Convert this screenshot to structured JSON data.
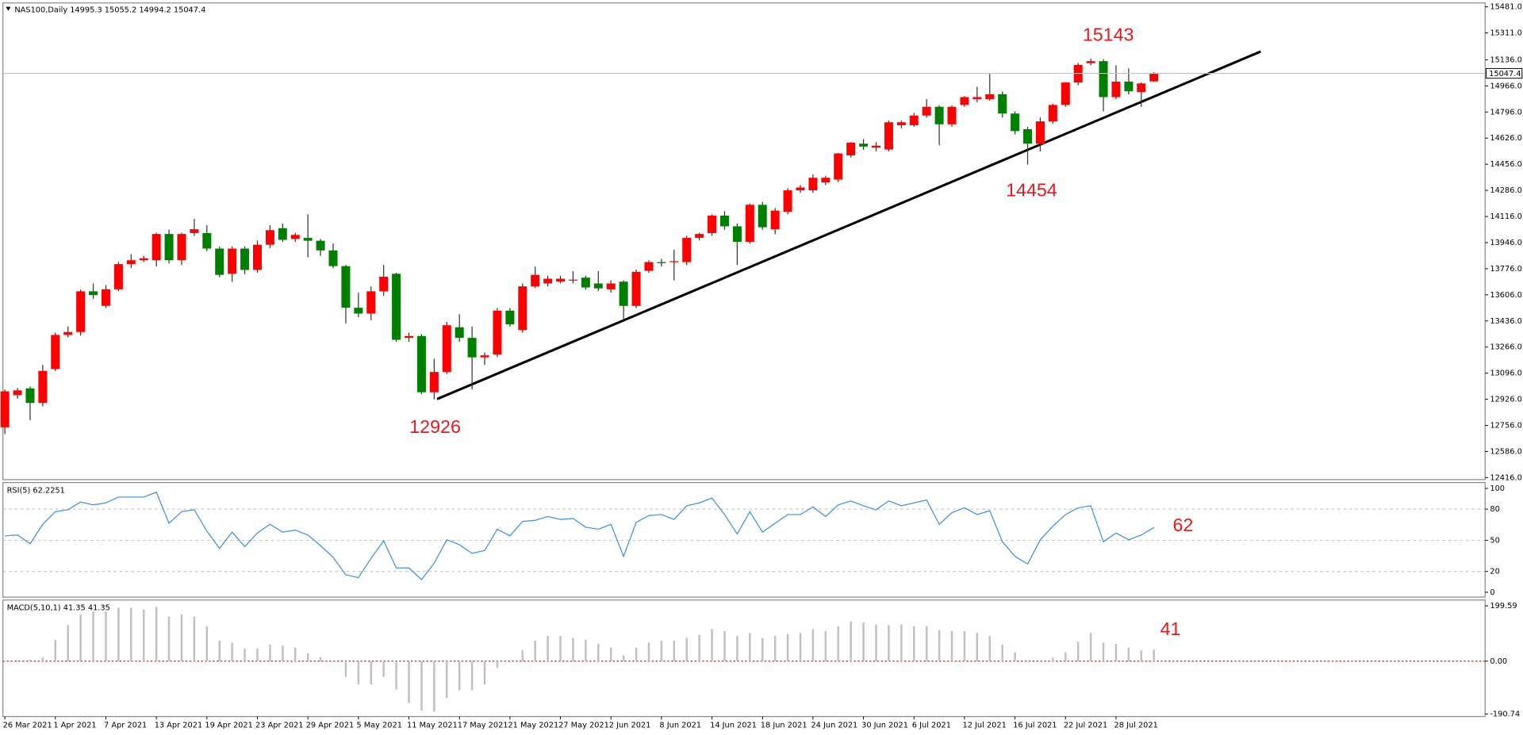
{
  "chart_data": [
    {
      "type": "candlestick",
      "title": "NAS100,Daily  14995.3 15055.2 14994.2 15047.4",
      "categories": [
        "26 Mar 2021",
        null,
        null,
        null,
        "1 Apr 2021",
        null,
        null,
        null,
        "7 Apr 2021",
        null,
        null,
        null,
        "13 Apr 2021",
        null,
        null,
        null,
        "19 Apr 2021",
        null,
        null,
        null,
        "23 Apr 2021",
        null,
        null,
        null,
        "29 Apr 2021",
        null,
        null,
        null,
        "5 May 2021",
        null,
        null,
        null,
        "11 May 2021",
        null,
        null,
        null,
        "17 May 2021",
        null,
        null,
        null,
        "21 May 2021",
        null,
        null,
        null,
        "27 May 2021",
        null,
        null,
        null,
        "2 Jun 2021",
        null,
        null,
        null,
        "8 Jun 2021",
        null,
        null,
        null,
        "14 Jun 2021",
        null,
        null,
        null,
        "18 Jun 2021",
        null,
        null,
        null,
        "24 Jun 2021",
        null,
        null,
        null,
        "30 Jun 2021",
        null,
        null,
        null,
        "6 Jul 2021",
        null,
        null,
        null,
        "12 Jul 2021",
        null,
        null,
        null,
        "16 Jul 2021",
        null,
        null,
        null,
        "22 Jul 2021",
        null,
        null,
        null,
        "28 Jul 2021",
        null,
        null,
        null
      ],
      "open": [
        12744,
        12953,
        12997,
        12902,
        13123,
        13345,
        13364,
        13629,
        13534,
        13642,
        13806,
        13831,
        13831,
        14002,
        13831,
        14008,
        14008,
        13907,
        13743,
        13907,
        13768,
        13932,
        14040,
        13970,
        13977,
        13958,
        13895,
        13793,
        13522,
        13484,
        13629,
        13743,
        13326,
        13338,
        12972,
        13104,
        13395,
        13326,
        13199,
        13218,
        13503,
        13376,
        13661,
        13680,
        13692,
        13699,
        13718,
        13680,
        13642,
        13692,
        13534,
        13762,
        13819,
        13819,
        13819,
        13977,
        14008,
        14122,
        14052,
        13951,
        14192,
        14033,
        14147,
        14286,
        14286,
        14337,
        14356,
        14514,
        14590,
        14564,
        14552,
        14710,
        14710,
        14773,
        14830,
        14716,
        14842,
        14880,
        14880,
        14912,
        14786,
        14684,
        14590,
        14735,
        14842,
        14988,
        15114,
        15127,
        14893,
        14994,
        14925,
        14995.3
      ],
      "high": [
        12990,
        13000,
        13010,
        13150,
        13360,
        13400,
        13640,
        13680,
        13670,
        13820,
        13870,
        13860,
        14010,
        14030,
        14010,
        14100,
        14060,
        13920,
        13920,
        13920,
        13960,
        14060,
        14070,
        14010,
        14130,
        13970,
        13940,
        13800,
        13620,
        13660,
        13800,
        13750,
        13360,
        13350,
        13190,
        13430,
        13480,
        13400,
        13230,
        13520,
        13520,
        13680,
        13790,
        13730,
        13730,
        13760,
        13730,
        13760,
        13700,
        13700,
        13770,
        13830,
        13840,
        13900,
        13990,
        14010,
        14130,
        14150,
        14070,
        14200,
        14210,
        14170,
        14300,
        14320,
        14390,
        14380,
        14530,
        14600,
        14620,
        14600,
        14740,
        14740,
        14790,
        14880,
        14840,
        14840,
        14900,
        14960,
        15050,
        14930,
        14800,
        14700,
        14760,
        14850,
        14990,
        15115,
        15143,
        15140,
        15100,
        15080,
        14990,
        15055.2
      ],
      "low": [
        12700,
        12930,
        12790,
        12880,
        13110,
        13330,
        13340,
        13580,
        13520,
        13630,
        13780,
        13820,
        13790,
        13810,
        13800,
        13990,
        13890,
        13720,
        13690,
        13740,
        13750,
        13910,
        13950,
        13950,
        13850,
        13860,
        13780,
        13420,
        13460,
        13440,
        13600,
        13300,
        13300,
        12960,
        12926,
        13090,
        13300,
        12990,
        13150,
        13200,
        13400,
        13360,
        13650,
        13660,
        13680,
        13680,
        13640,
        13630,
        13620,
        13440,
        13520,
        13750,
        13790,
        13700,
        13800,
        13960,
        13990,
        14030,
        13800,
        13940,
        14030,
        14000,
        14130,
        14270,
        14270,
        14320,
        14340,
        14500,
        14550,
        14540,
        14540,
        14690,
        14700,
        14760,
        14580,
        14700,
        14830,
        14860,
        14870,
        14760,
        14650,
        14454,
        14540,
        14720,
        14830,
        14970,
        15100,
        14800,
        14880,
        14910,
        14830,
        14994.2
      ],
      "close": [
        12978,
        12984,
        12902,
        13111,
        13345,
        13364,
        13629,
        13604,
        13642,
        13806,
        13831,
        13844,
        14002,
        13831,
        14002,
        14033,
        13907,
        13736,
        13907,
        13768,
        13932,
        14027,
        13964,
        13996,
        13958,
        13895,
        13793,
        13522,
        13484,
        13629,
        13724,
        13313,
        13338,
        12972,
        13104,
        13408,
        13326,
        13199,
        13212,
        13503,
        13414,
        13661,
        13736,
        13711,
        13711,
        13705,
        13654,
        13648,
        13680,
        13534,
        13756,
        13819,
        13812,
        13825,
        13977,
        14002,
        14122,
        14052,
        13951,
        14192,
        14046,
        14154,
        14286,
        14305,
        14368,
        14368,
        14526,
        14596,
        14571,
        14577,
        14729,
        14729,
        14773,
        14830,
        14716,
        14830,
        14893,
        14893,
        14912,
        14786,
        14672,
        14590,
        14735,
        14842,
        14988,
        15102,
        15127,
        14893,
        14994,
        14931,
        14982,
        15047.4
      ],
      "up_color": "#ff0000",
      "down_color": "#008000",
      "last_price": 15047.4,
      "ylim": [
        12403,
        15506
      ],
      "yticks": [
        {
          "value": 12416,
          "label": "12416.0"
        },
        {
          "value": 12586,
          "label": "12586.0"
        },
        {
          "value": 12756,
          "label": "12756.0"
        },
        {
          "value": 12926,
          "label": "12926.0"
        },
        {
          "value": 13096,
          "label": "13096.0"
        },
        {
          "value": 13266,
          "label": "13266.0"
        },
        {
          "value": 13436,
          "label": "13436.0"
        },
        {
          "value": 13606,
          "label": "13606.0"
        },
        {
          "value": 13776,
          "label": "13776.0"
        },
        {
          "value": 13946,
          "label": "13946.0"
        },
        {
          "value": 14116,
          "label": "14116.0"
        },
        {
          "value": 14286,
          "label": "14286.0"
        },
        {
          "value": 14456,
          "label": "14456.0"
        },
        {
          "value": 14626,
          "label": "14626.0"
        },
        {
          "value": 14796,
          "label": "14796.0"
        },
        {
          "value": 14966,
          "label": "14966.0"
        },
        {
          "value": 15136,
          "label": "15136.0"
        },
        {
          "value": 15311,
          "label": "15311.0"
        },
        {
          "value": 15481,
          "label": "15481.0"
        }
      ],
      "annotations": [
        "15143",
        "14454",
        "12926"
      ]
    },
    {
      "type": "line",
      "title": "RSI(5) 62.2251",
      "color": "#3d8fe0",
      "values": [
        54.2,
        55.1,
        46.7,
        65.4,
        77.6,
        79.4,
        86.9,
        84.1,
        86.0,
        91.6,
        91.6,
        91.6,
        96.3,
        66.4,
        77.6,
        79.4,
        58.9,
        42.1,
        57.9,
        43.9,
        57.0,
        65.4,
        57.9,
        59.8,
        55.1,
        44.9,
        33.6,
        16.8,
        14.0,
        32.7,
        49.5,
        23.4,
        23.4,
        12.1,
        28.0,
        50.5,
        45.8,
        37.4,
        40.2,
        60.7,
        54.2,
        68.2,
        69.2,
        72.9,
        70.1,
        71.0,
        62.6,
        60.7,
        65.4,
        34.6,
        67.3,
        73.8,
        74.8,
        70.1,
        83.2,
        86.0,
        90.7,
        74.8,
        56.1,
        77.6,
        57.9,
        66.4,
        74.8,
        74.8,
        82.2,
        72.9,
        84.1,
        87.9,
        83.2,
        79.4,
        87.9,
        83.2,
        86.0,
        88.8,
        65.4,
        76.6,
        81.3,
        74.8,
        78.5,
        48.6,
        34.6,
        27.1,
        50.5,
        63.6,
        74.8,
        81.3,
        83.2,
        48.6,
        57.0,
        50.5,
        55.1,
        62.2251
      ],
      "ylim": [
        -4.7,
        105.6
      ],
      "yticks": [
        100,
        80,
        50,
        20,
        0
      ],
      "levels": [
        80,
        50,
        20
      ],
      "annotations": [
        "62"
      ]
    },
    {
      "type": "bar",
      "title": "MACD(5,10,1) 41.35 41.35",
      "color": "#c0c0c0",
      "values": [
        2,
        3,
        5,
        14,
        77,
        130,
        168,
        179,
        179,
        193,
        193,
        186,
        196,
        161,
        168,
        161,
        126,
        74,
        67,
        46,
        46,
        60,
        56,
        49,
        28,
        14,
        1,
        -56,
        -84,
        -84,
        -56,
        -102,
        -151,
        -179,
        -182,
        -133,
        -105,
        -105,
        -84,
        -25,
        -4,
        39,
        74,
        91,
        91,
        84,
        77,
        63,
        49,
        21,
        49,
        67,
        74,
        74,
        84,
        95,
        116,
        109,
        91,
        102,
        84,
        91,
        98,
        102,
        116,
        109,
        126,
        144,
        140,
        133,
        130,
        133,
        126,
        126,
        112,
        109,
        109,
        102,
        91,
        60,
        32,
        -1,
        1,
        14,
        32,
        70,
        102,
        67,
        63,
        49,
        39,
        41.35
      ],
      "ylim": [
        -199.6,
        220.6
      ],
      "yticks": [
        199.59,
        {
          "value": 0,
          "label": "0.00"
        },
        -190.74
      ],
      "annotations": [
        "41"
      ]
    }
  ]
}
